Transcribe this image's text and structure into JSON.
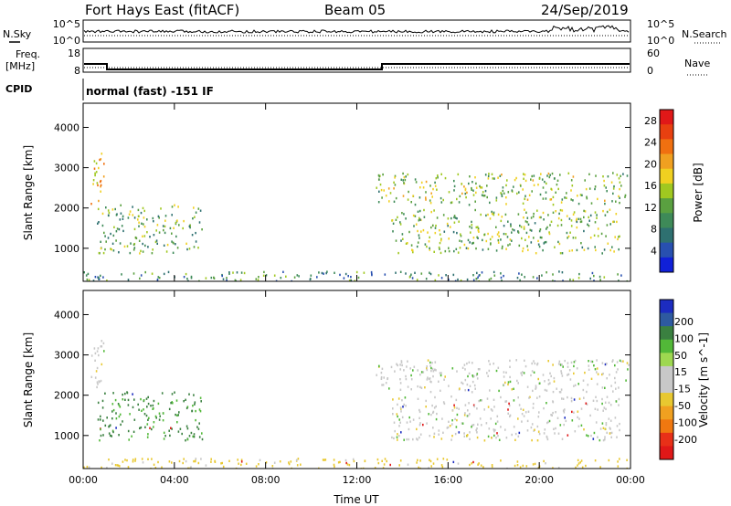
{
  "header": {
    "title": "Fort Hays East (fitACF)",
    "beam": "Beam 05",
    "date": "24/Sep/2019"
  },
  "noise_panel": {
    "left_label": "N.Sky",
    "right_label": "N.Search",
    "left_ticks": [
      "10^5",
      "10^0"
    ],
    "right_ticks": [
      "10^5",
      "10^0"
    ]
  },
  "freq_panel": {
    "left_label_line1": "Freq.",
    "left_label_line2": "[MHz]",
    "right_label": "Nave",
    "left_ticks": [
      "18",
      "8"
    ],
    "right_ticks": [
      "60",
      "0"
    ]
  },
  "cpid": {
    "label": "CPID",
    "value": "normal (fast) -151 IF"
  },
  "colors": {
    "power_scale": [
      "#1020d8",
      "#2850b0",
      "#2e7070",
      "#3e8a58",
      "#5aa040",
      "#a0c820",
      "#f0d020",
      "#f0a020",
      "#f07010",
      "#e84010",
      "#e01818"
    ],
    "velocity_scale": [
      "#1c2cc0",
      "#2e5aa0",
      "#3a8040",
      "#52b838",
      "#9ed850",
      "#c8c8c8",
      "#c8c8c8",
      "#e8c830",
      "#f0a020",
      "#f07810",
      "#e83018",
      "#e01818"
    ],
    "ground_scatter": "#b8b8b8"
  },
  "chart_data": [
    {
      "type": "heatmap",
      "name": "power",
      "xlabel": "",
      "ylabel": "Slant Range [km]",
      "x_ticks": [
        "00:00",
        "04:00",
        "08:00",
        "12:00",
        "16:00",
        "20:00",
        "00:00"
      ],
      "y_ticks": [
        "1000",
        "2000",
        "3000",
        "4000"
      ],
      "x_range_hours": [
        0,
        24
      ],
      "ylim": [
        180,
        4600
      ],
      "colorbar": {
        "label": "Power [dB]",
        "ticks": [
          "4",
          "8",
          "12",
          "16",
          "20",
          "24",
          "28"
        ],
        "range": [
          0,
          30
        ]
      },
      "regions": [
        {
          "t": [
            0.3,
            0.9
          ],
          "r": [
            2000,
            3400
          ],
          "v": 19
        },
        {
          "t": [
            0.6,
            5.2
          ],
          "r": [
            900,
            2100
          ],
          "v": 12
        },
        {
          "t": [
            0.0,
            24.0
          ],
          "r": [
            200,
            450
          ],
          "v": 9
        },
        {
          "t": [
            12.8,
            24.0
          ],
          "r": [
            2100,
            2900
          ],
          "v": 14
        },
        {
          "t": [
            13.5,
            23.5
          ],
          "r": [
            900,
            2000
          ],
          "v": 13
        }
      ]
    },
    {
      "type": "heatmap",
      "name": "velocity",
      "xlabel": "Time UT",
      "ylabel": "Slant Range [km]",
      "x_ticks": [
        "00:00",
        "04:00",
        "08:00",
        "12:00",
        "16:00",
        "20:00",
        "00:00"
      ],
      "y_ticks": [
        "1000",
        "2000",
        "3000",
        "4000"
      ],
      "x_range_hours": [
        0,
        24
      ],
      "ylim": [
        180,
        4600
      ],
      "colorbar": {
        "label": "Velocity [m s^-1]",
        "ticks": [
          "200",
          "100",
          "50",
          "15",
          "-15",
          "-50",
          "-100",
          "-200"
        ]
      },
      "regions": [
        {
          "t": [
            0.3,
            0.9
          ],
          "r": [
            2000,
            3400
          ],
          "v": 0
        },
        {
          "t": [
            0.6,
            5.2
          ],
          "r": [
            900,
            2100
          ],
          "v": 60
        },
        {
          "t": [
            0.0,
            24.0
          ],
          "r": [
            200,
            450
          ],
          "v": -30
        },
        {
          "t": [
            12.8,
            24.0
          ],
          "r": [
            2100,
            2900
          ],
          "v": 0
        },
        {
          "t": [
            13.5,
            23.5
          ],
          "r": [
            900,
            2000
          ],
          "v": 0
        }
      ]
    }
  ]
}
